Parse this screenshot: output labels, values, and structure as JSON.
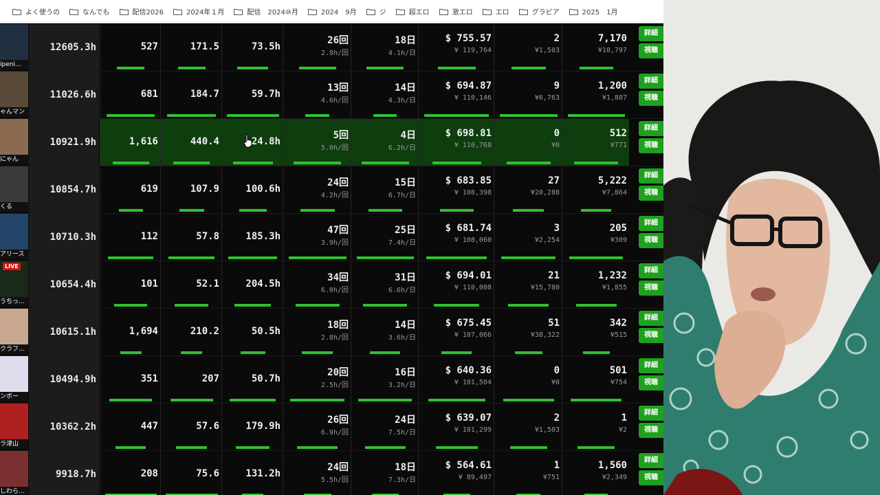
{
  "bookmarks": [
    {
      "label": "よく使うの"
    },
    {
      "label": "なんでも"
    },
    {
      "label": "配信2026"
    },
    {
      "label": "2024年１月"
    },
    {
      "label": "配信　2024⑩月"
    },
    {
      "label": "2024　9月"
    },
    {
      "label": "ジ"
    },
    {
      "label": "超エロ"
    },
    {
      "label": "激エロ"
    },
    {
      "label": "エロ"
    },
    {
      "label": "グラビア"
    },
    {
      "label": "2025　1月"
    }
  ],
  "buttons": {
    "detail": "詳細",
    "view": "視聴"
  },
  "rows": [
    {
      "name": "ipeni...",
      "hours": "12605.3h",
      "c1": "527",
      "c2": "171.5",
      "c3": "73.5h",
      "times": "26回",
      "per_time": "2.8h/回",
      "days": "18日",
      "per_day": "4.1h/日",
      "usd": "$ 755.57",
      "jpy": "¥ 119,764",
      "n1": "2",
      "n1_yen": "¥1,503",
      "n2": "7,170",
      "n2_yen": "¥10,797"
    },
    {
      "name": "ゃんマン",
      "hours": "11026.6h",
      "c1": "681",
      "c2": "184.7",
      "c3": "59.7h",
      "times": "13回",
      "per_time": "4.6h/回",
      "days": "14日",
      "per_day": "4.3h/日",
      "usd": "$ 694.87",
      "jpy": "¥ 110,146",
      "n1": "9",
      "n1_yen": "¥6,763",
      "n2": "1,200",
      "n2_yen": "¥1,807"
    },
    {
      "name": "にゃん",
      "hours": "10921.9h",
      "c1": "1,616",
      "c2": "440.4",
      "c3": "24.8h",
      "times": "5回",
      "per_time": "5.0h/回",
      "days": "4日",
      "per_day": "6.2h/日",
      "usd": "$ 698.81",
      "jpy": "¥ 110,768",
      "n1": "0",
      "n1_yen": "¥0",
      "n2": "512",
      "n2_yen": "¥771"
    },
    {
      "name": "くる",
      "hours": "10854.7h",
      "c1": "619",
      "c2": "107.9",
      "c3": "100.6h",
      "times": "24回",
      "per_time": "4.2h/回",
      "days": "15日",
      "per_day": "6.7h/日",
      "usd": "$ 683.85",
      "jpy": "¥ 108,398",
      "n1": "27",
      "n1_yen": "¥20,288",
      "n2": "5,222",
      "n2_yen": "¥7,864"
    },
    {
      "name": "アリース",
      "hours": "10710.3h",
      "c1": "112",
      "c2": "57.8",
      "c3": "185.3h",
      "times": "47回",
      "per_time": "3.9h/回",
      "days": "25日",
      "per_day": "7.4h/日",
      "usd": "$ 681.74",
      "jpy": "¥ 108,060",
      "n1": "3",
      "n1_yen": "¥2,254",
      "n2": "205",
      "n2_yen": "¥309"
    },
    {
      "name": "うちっ...",
      "hours": "10654.4h",
      "c1": "101",
      "c2": "52.1",
      "c3": "204.5h",
      "times": "34回",
      "per_time": "6.0h/回",
      "days": "31日",
      "per_day": "6.6h/日",
      "usd": "$ 694.01",
      "jpy": "¥ 110,008",
      "n1": "21",
      "n1_yen": "¥15,780",
      "n2": "1,232",
      "n2_yen": "¥1,855",
      "live": "LIVE"
    },
    {
      "name": "クラフ...",
      "hours": "10615.1h",
      "c1": "1,694",
      "c2": "210.2",
      "c3": "50.5h",
      "times": "18回",
      "per_time": "2.8h/回",
      "days": "14日",
      "per_day": "3.6h/日",
      "usd": "$ 675.45",
      "jpy": "¥ 107,066",
      "n1": "51",
      "n1_yen": "¥38,322",
      "n2": "342",
      "n2_yen": "¥515"
    },
    {
      "name": "ンボー",
      "hours": "10494.9h",
      "c1": "351",
      "c2": "207",
      "c3": "50.7h",
      "times": "20回",
      "per_time": "2.5h/回",
      "days": "16日",
      "per_day": "3.2h/日",
      "usd": "$ 640.36",
      "jpy": "¥ 101,504",
      "n1": "0",
      "n1_yen": "¥0",
      "n2": "501",
      "n2_yen": "¥754"
    },
    {
      "name": "ラ津山",
      "hours": "10362.2h",
      "c1": "447",
      "c2": "57.6",
      "c3": "179.9h",
      "times": "26回",
      "per_time": "6.9h/回",
      "days": "24日",
      "per_day": "7.5h/日",
      "usd": "$ 639.07",
      "jpy": "¥ 101,299",
      "n1": "2",
      "n1_yen": "¥1,503",
      "n2": "1",
      "n2_yen": "¥2"
    },
    {
      "name": "しわら...",
      "hours": "9918.7h",
      "c1": "208",
      "c2": "75.6",
      "c3": "131.2h",
      "times": "24回",
      "per_time": "5.5h/回",
      "days": "18日",
      "per_day": "7.3h/日",
      "usd": "$ 564.61",
      "jpy": "¥ 89,497",
      "n1": "1",
      "n1_yen": "¥751",
      "n2": "1,560",
      "n2_yen": "¥2,349"
    }
  ],
  "highlight_row": 2,
  "colors": {
    "accent_green": "#30c030",
    "button_green": "#1fa01f",
    "highlight": "#0e3d0e"
  }
}
